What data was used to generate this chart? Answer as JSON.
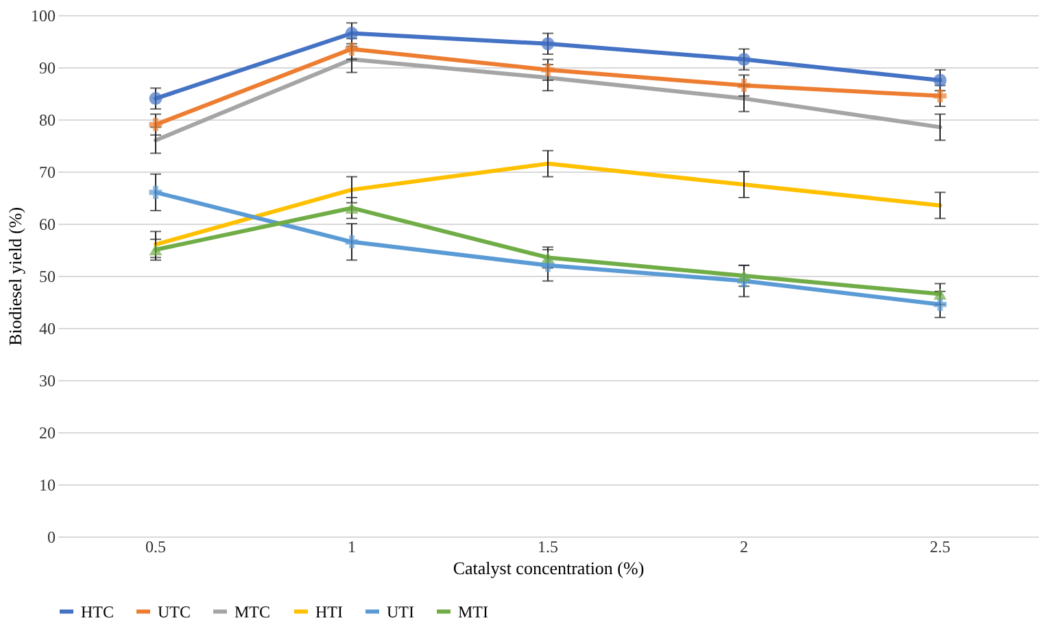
{
  "chart_data": {
    "type": "line",
    "xlabel": "Catalyst concentration (%)",
    "ylabel": "Biodiesel yield (%)",
    "categories": [
      "0.5",
      "1",
      "1.5",
      "2",
      "2.5"
    ],
    "ylim": [
      0,
      100
    ],
    "yticks": [
      0,
      10,
      20,
      30,
      40,
      50,
      60,
      70,
      80,
      90,
      100
    ],
    "grid": "y",
    "legend": "bottom",
    "series": [
      {
        "name": "HTC",
        "color": "#4472c4",
        "marker": "circle",
        "values": [
          84,
          96.5,
          94.5,
          91.5,
          87.5
        ],
        "errors": [
          2,
          2,
          2,
          2,
          2
        ]
      },
      {
        "name": "UTC",
        "color": "#ed7d31",
        "marker": "cross",
        "values": [
          79,
          93.5,
          89.5,
          86.5,
          84.5
        ],
        "errors": [
          2,
          2,
          2,
          2,
          2
        ]
      },
      {
        "name": "MTC",
        "color": "#a5a5a5",
        "marker": "none",
        "values": [
          76,
          91.5,
          88,
          84,
          78.5
        ],
        "errors": [
          2.5,
          2.5,
          2.5,
          2.5,
          2.5
        ]
      },
      {
        "name": "HTI",
        "color": "#ffc000",
        "marker": "none",
        "values": [
          56,
          66.5,
          71.5,
          67.5,
          63.5
        ],
        "errors": [
          2.5,
          2.5,
          2.5,
          2.5,
          2.5
        ]
      },
      {
        "name": "UTI",
        "color": "#5b9bd5",
        "marker": "cross",
        "values": [
          66,
          56.5,
          52,
          49,
          44.5
        ],
        "errors": [
          3.5,
          3.5,
          3,
          3,
          2.5
        ]
      },
      {
        "name": "MTI",
        "color": "#70ad47",
        "marker": "triangle",
        "values": [
          55,
          63,
          53.5,
          50,
          46.5
        ],
        "errors": [
          2,
          2,
          2,
          2,
          2
        ]
      }
    ]
  }
}
